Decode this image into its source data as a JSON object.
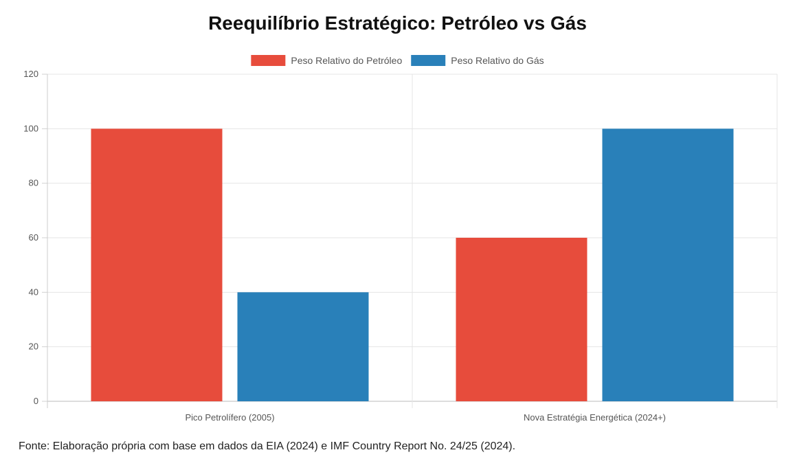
{
  "chart_data": {
    "type": "bar",
    "title": "Reequilíbrio Estratégico: Petróleo vs Gás",
    "categories": [
      "Pico Petrolífero (2005)",
      "Nova Estratégia Energética (2024+)"
    ],
    "series": [
      {
        "name": "Peso Relativo do Petróleo",
        "values": [
          100,
          60
        ],
        "color": "#e74c3c"
      },
      {
        "name": "Peso Relativo do Gás",
        "values": [
          40,
          100
        ],
        "color": "#2980b9"
      }
    ],
    "ylim": [
      0,
      120
    ],
    "yticks": [
      0,
      20,
      40,
      60,
      80,
      100,
      120
    ],
    "grid": true,
    "legend_position": "top-center"
  },
  "source_note": "Fonte: Elaboração própria com base em dados da EIA (2024) e IMF Country Report No. 24/25 (2024)."
}
